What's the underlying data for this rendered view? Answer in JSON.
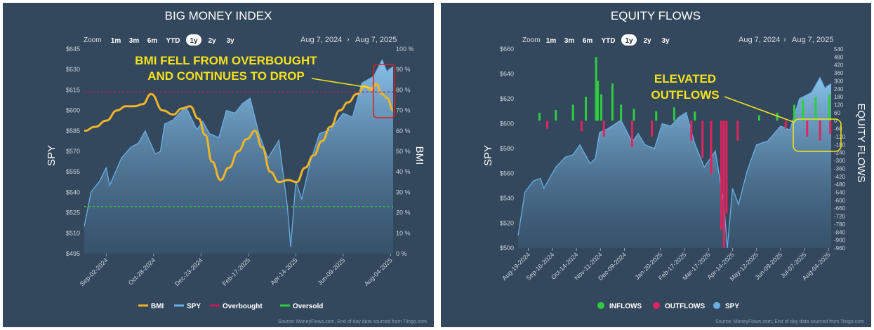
{
  "charts": [
    {
      "title": "BIG MONEY INDEX",
      "zoom": {
        "label": "Zoom",
        "options": [
          "1m",
          "3m",
          "6m",
          "YTD",
          "1y",
          "2y",
          "3y"
        ],
        "selected": "1y"
      },
      "date_range": {
        "from": "Aug 7, 2024",
        "arrow": "›",
        "to": "Aug 7, 2025"
      },
      "left_axis_title": "SPY",
      "right_axis_title": "BMI",
      "left_ticks": [
        "$645",
        "$630",
        "$615",
        "$600",
        "$585",
        "$570",
        "$555",
        "$540",
        "$525",
        "$510",
        "$495"
      ],
      "right_ticks": [
        "100 %",
        "90 %",
        "80 %",
        "70 %",
        "60 %",
        "50 %",
        "40 %",
        "30 %",
        "20 %",
        "10 %",
        "0 %"
      ],
      "x_ticks": [
        "Sep-02-2024",
        "Oct-28-2024",
        "Dec-23-2024",
        "Feb-17-2025",
        "Apr-14-2025",
        "Jun-09-2025",
        "Aug-04-2025"
      ],
      "annotation": {
        "line1": "BMI FELL FROM OVERBOUGHT",
        "line2": "AND CONTINUES TO DROP"
      },
      "legend": [
        {
          "label": "BMI",
          "color": "#f0b429"
        },
        {
          "label": "SPY",
          "color": "#6aaee6"
        },
        {
          "label": "Overbought",
          "color": "#c2185b"
        },
        {
          "label": "Oversold",
          "color": "#2ecc40"
        }
      ],
      "source": "Source: MoneyFlows.com, End of day data sourced from Tiingo.com",
      "chart_data": {
        "type": "line",
        "x_range": [
          "2024-08-07",
          "2025-08-07"
        ],
        "y_left": {
          "label": "SPY",
          "range": [
            495,
            645
          ]
        },
        "y_right": {
          "label": "BMI",
          "range": [
            0,
            100
          ]
        },
        "series": [
          {
            "name": "SPY",
            "axis": "left",
            "type": "area",
            "color": "#6aaee6",
            "x": [
              "2024-08-07",
              "2024-08-15",
              "2024-08-25",
              "2024-09-02",
              "2024-09-06",
              "2024-09-20",
              "2024-10-01",
              "2024-10-10",
              "2024-10-18",
              "2024-10-30",
              "2024-11-05",
              "2024-11-10",
              "2024-11-20",
              "2024-12-05",
              "2024-12-18",
              "2024-12-25",
              "2025-01-02",
              "2025-01-13",
              "2025-01-22",
              "2025-02-01",
              "2025-02-10",
              "2025-02-19",
              "2025-03-01",
              "2025-03-12",
              "2025-03-25",
              "2025-04-04",
              "2025-04-08",
              "2025-04-14",
              "2025-04-21",
              "2025-05-01",
              "2025-05-12",
              "2025-05-25",
              "2025-06-09",
              "2025-06-20",
              "2025-07-01",
              "2025-07-15",
              "2025-07-25",
              "2025-07-31",
              "2025-08-02",
              "2025-08-07"
            ],
            "y": [
              515,
              540,
              548,
              558,
              545,
              565,
              573,
              576,
              585,
              568,
              570,
              590,
              593,
              603,
              586,
              592,
              583,
              580,
              600,
              598,
              605,
              609,
              584,
              565,
              578,
              530,
              500,
              548,
              535,
              562,
              583,
              586,
              598,
              595,
              620,
              625,
              637,
              628,
              630,
              632
            ]
          },
          {
            "name": "BMI",
            "axis": "right",
            "type": "line",
            "color": "#f0b429",
            "x": [
              "2024-08-07",
              "2024-08-20",
              "2024-09-02",
              "2024-09-15",
              "2024-09-25",
              "2024-10-05",
              "2024-10-15",
              "2024-10-25",
              "2024-11-08",
              "2024-11-20",
              "2024-12-01",
              "2024-12-10",
              "2024-12-20",
              "2024-12-28",
              "2025-01-05",
              "2025-01-15",
              "2025-01-25",
              "2025-02-05",
              "2025-02-15",
              "2025-02-25",
              "2025-03-05",
              "2025-03-15",
              "2025-03-25",
              "2025-04-05",
              "2025-04-15",
              "2025-04-25",
              "2025-05-05",
              "2025-05-15",
              "2025-05-25",
              "2025-06-05",
              "2025-06-15",
              "2025-06-25",
              "2025-07-05",
              "2025-07-12",
              "2025-07-18",
              "2025-07-25",
              "2025-07-31",
              "2025-08-07"
            ],
            "y": [
              60,
              62,
              65,
              70,
              72,
              72,
              73,
              78,
              70,
              68,
              71,
              72,
              66,
              58,
              45,
              36,
              42,
              50,
              56,
              60,
              52,
              40,
              35,
              36,
              35,
              42,
              48,
              55,
              62,
              70,
              74,
              78,
              82,
              80,
              83,
              78,
              76,
              70
            ]
          },
          {
            "name": "Overbought",
            "axis": "right",
            "type": "hline",
            "color": "#c2185b",
            "y": [
              79
            ]
          },
          {
            "name": "Oversold",
            "axis": "right",
            "type": "hline",
            "color": "#2ecc40",
            "y": [
              23
            ]
          }
        ]
      }
    },
    {
      "title": "EQUITY FLOWS",
      "zoom": {
        "label": "Zoom",
        "options": [
          "1m",
          "3m",
          "6m",
          "YTD",
          "1y",
          "2y",
          "3y"
        ],
        "selected": "1y"
      },
      "date_range": {
        "from": "Aug 7, 2024",
        "arrow": "›",
        "to": "Aug 7, 2025"
      },
      "left_axis_title": "SPY",
      "right_axis_title": "EQUITY FLOWS",
      "left_ticks": [
        "$660",
        "$640",
        "$620",
        "$600",
        "$580",
        "$560",
        "$540",
        "$520",
        "$500"
      ],
      "right_ticks": [
        "540",
        "480",
        "420",
        "360",
        "300",
        "240",
        "180",
        "120",
        "60",
        "0",
        "-60",
        "-120",
        "-180",
        "-240",
        "-300",
        "-360",
        "-420",
        "-480",
        "-540",
        "-600",
        "-660",
        "-720",
        "-780",
        "-840",
        "-900",
        "-960"
      ],
      "x_ticks": [
        "Aug-19-2024",
        "Sep-16-2024",
        "Oct-14-2024",
        "Nov-11-2024",
        "Dec-09-2024",
        "Jan-20-2025",
        "Feb-17-2025",
        "Mar-17-2025",
        "Apr-14-2025",
        "May-12-2025",
        "Jun-09-2025",
        "Jul-07-2025",
        "Aug-04-2025"
      ],
      "annotation": {
        "line1": "ELEVATED",
        "line2": "OUTFLOWS"
      },
      "legend": [
        {
          "label": "INFLOWS",
          "color": "#2ecc40"
        },
        {
          "label": "OUTFLOWS",
          "color": "#e0245e"
        },
        {
          "label": "SPY",
          "color": "#6aaee6"
        }
      ],
      "source": "Source: MoneyFlows.com, End of day data sourced from Tiingo.com",
      "chart_data": {
        "type": "bar",
        "x_range": [
          "2024-08-07",
          "2025-08-07"
        ],
        "y_left": {
          "label": "SPY",
          "range": [
            500,
            660
          ]
        },
        "y_right": {
          "label": "EQUITY FLOWS",
          "range": [
            -960,
            540
          ]
        },
        "series": [
          {
            "name": "SPY",
            "axis": "left",
            "type": "area",
            "color": "#6aaee6",
            "x": [
              "2024-08-07",
              "2024-08-15",
              "2024-08-25",
              "2024-09-02",
              "2024-09-06",
              "2024-09-20",
              "2024-10-01",
              "2024-10-10",
              "2024-10-18",
              "2024-10-30",
              "2024-11-05",
              "2024-11-10",
              "2024-11-20",
              "2024-12-05",
              "2024-12-18",
              "2024-12-25",
              "2025-01-02",
              "2025-01-13",
              "2025-01-22",
              "2025-02-01",
              "2025-02-10",
              "2025-02-19",
              "2025-03-01",
              "2025-03-12",
              "2025-03-25",
              "2025-04-04",
              "2025-04-08",
              "2025-04-14",
              "2025-04-21",
              "2025-05-01",
              "2025-05-12",
              "2025-05-25",
              "2025-06-09",
              "2025-06-20",
              "2025-07-01",
              "2025-07-15",
              "2025-07-25",
              "2025-07-31",
              "2025-08-02",
              "2025-08-07"
            ],
            "y": [
              510,
              545,
              554,
              556,
              548,
              565,
              573,
              575,
              583,
              568,
              572,
              593,
              596,
              603,
              585,
              592,
              583,
              580,
              600,
              598,
              605,
              609,
              584,
              565,
              578,
              535,
              500,
              548,
              535,
              562,
              583,
              586,
              598,
              595,
              620,
              625,
              637,
              628,
              630,
              632
            ]
          },
          {
            "name": "INFLOWS",
            "axis": "right",
            "type": "bar",
            "color": "#2ecc40",
            "x": [
              "2024-09-01",
              "2024-09-20",
              "2024-10-10",
              "2024-10-25",
              "2024-11-06",
              "2024-11-08",
              "2024-11-12",
              "2024-11-25",
              "2024-12-05",
              "2024-12-20",
              "2025-01-15",
              "2025-02-05",
              "2025-03-01",
              "2025-05-15",
              "2025-06-05",
              "2025-06-25",
              "2025-07-05",
              "2025-07-20",
              "2025-08-05"
            ],
            "y": [
              60,
              80,
              120,
              180,
              480,
              300,
              200,
              280,
              120,
              90,
              70,
              100,
              70,
              40,
              60,
              120,
              160,
              180,
              200
            ]
          },
          {
            "name": "OUTFLOWS",
            "axis": "right",
            "type": "bar",
            "color": "#e0245e",
            "x": [
              "2024-09-10",
              "2024-10-20",
              "2024-11-15",
              "2024-12-18",
              "2025-01-10",
              "2025-02-25",
              "2025-03-10",
              "2025-03-20",
              "2025-04-01",
              "2025-04-04",
              "2025-04-07",
              "2025-04-20",
              "2025-06-15",
              "2025-07-10",
              "2025-07-25",
              "2025-08-06"
            ],
            "y": [
              -60,
              -80,
              -120,
              -200,
              -120,
              -150,
              -280,
              -400,
              -820,
              -960,
              -700,
              -150,
              -60,
              -120,
              -150,
              -100
            ]
          }
        ]
      }
    }
  ]
}
